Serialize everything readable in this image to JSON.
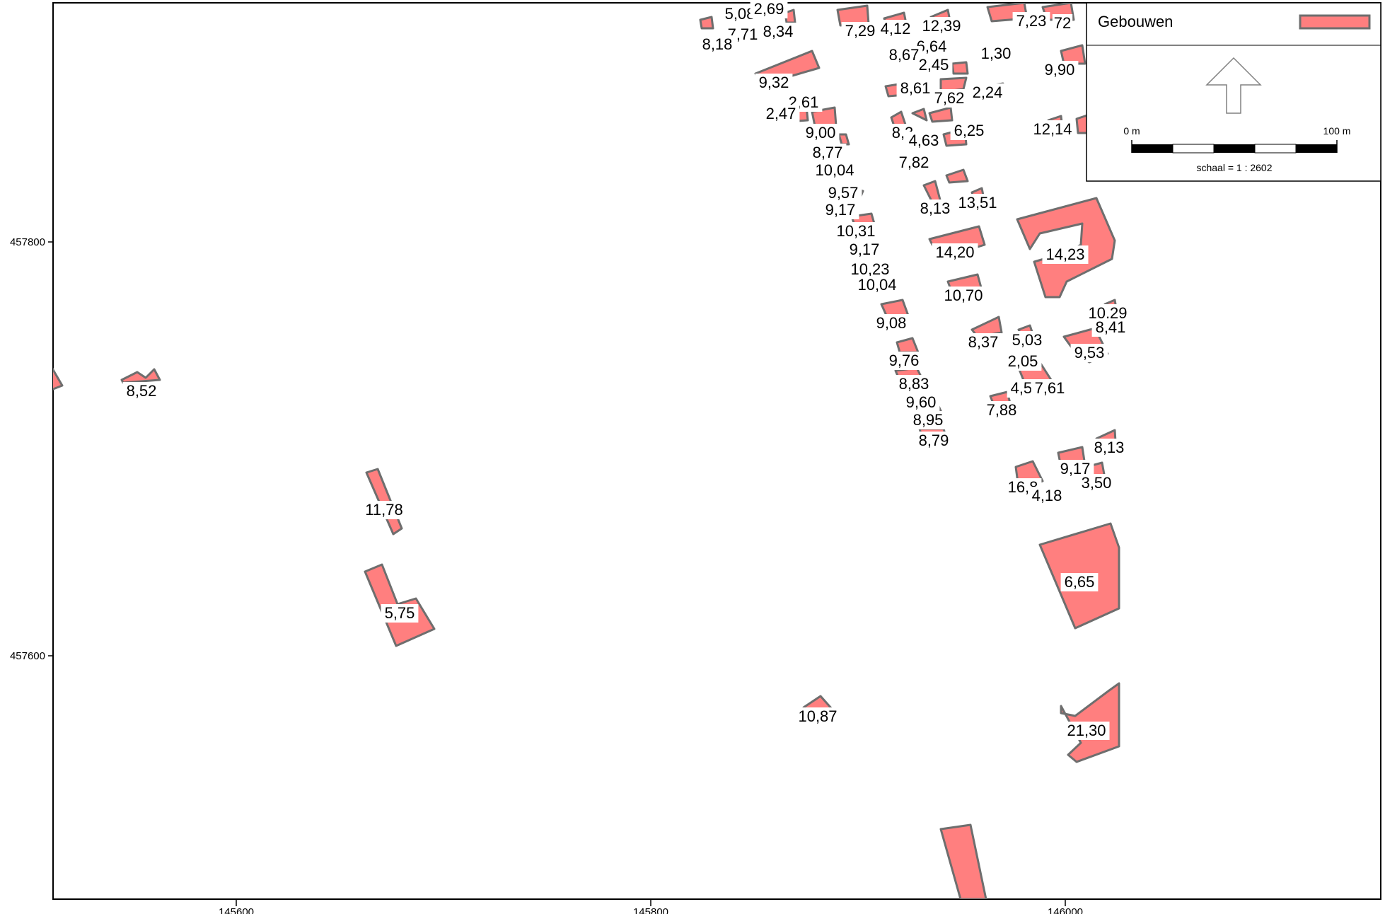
{
  "axes": {
    "x_ticks": [
      "145600",
      "145800",
      "146000"
    ],
    "y_ticks": [
      "457800",
      "457600"
    ]
  },
  "legend": {
    "layer_name": "Gebouwen",
    "layer_color": "#ff7f7f",
    "outline_color": "#6e6e6e",
    "north_arrow_icon": "north-arrow-icon",
    "scale_start": "0 m",
    "scale_end": "100 m",
    "scale_text": "schaal = 1 : 2602"
  },
  "labels": [
    "8,52",
    "11,78",
    "5,75",
    "10,87",
    "6,65",
    "21,30",
    "14,23",
    "14,20",
    "10,70",
    "13,51",
    "8,13",
    "10,29",
    "8,41",
    "9,53",
    "8,37",
    "5,03",
    "2,05",
    "4,57",
    "7,61",
    "7,88",
    "8,13",
    "9,17",
    "3,50",
    "16,8",
    "4,18",
    "9,00",
    "8,77",
    "10,04",
    "9,57",
    "9,17",
    "10,31",
    "9,17",
    "10,23",
    "10,04",
    "9,08",
    "9,76",
    "8,83",
    "9,60",
    "8,95",
    "8,79",
    "9,32",
    "2,61",
    "2,47",
    "8,34",
    "5,08",
    "2,69",
    "7,71",
    "8,18",
    "7,29",
    "4,12",
    "12,39",
    "6,64",
    "8,67",
    "2,45",
    "1,30",
    "8,61",
    "7,62",
    "2,24",
    "8,3",
    "4,63",
    "6,25",
    "7,82",
    "7,23",
    "72",
    "9,90",
    "12,14"
  ]
}
